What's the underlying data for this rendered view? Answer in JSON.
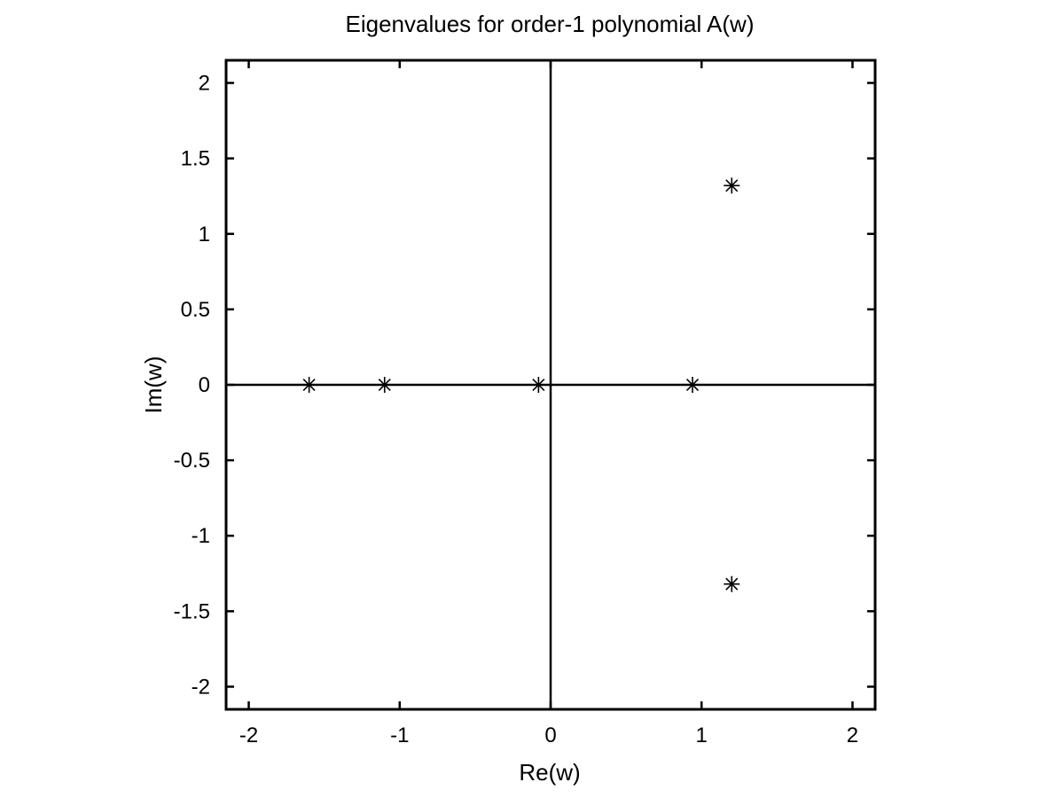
{
  "chart_data": {
    "type": "scatter",
    "title": "Eigenvalues for order-1 polynomial A(w)",
    "xlabel": "Re(w)",
    "ylabel": "Im(w)",
    "xlim": [
      -2.15,
      2.15
    ],
    "ylim": [
      -2.15,
      2.15
    ],
    "xticks": [
      -2,
      -1,
      0,
      1,
      2
    ],
    "xtick_labels": [
      "-2",
      "-1",
      "0",
      "1",
      "2"
    ],
    "yticks": [
      2,
      1.5,
      1,
      0.5,
      0,
      -0.5,
      -1,
      -1.5,
      -2
    ],
    "ytick_labels": [
      "2",
      "1.5",
      "1",
      "0.5",
      "0",
      "-0.5",
      "-1",
      "-1.5",
      "-2"
    ],
    "grid": false,
    "axes_lines_at_zero": true,
    "marker": "asterisk",
    "marker_color": "#000000",
    "series": [
      {
        "points": [
          {
            "x": -1.6,
            "y": 0
          },
          {
            "x": -1.1,
            "y": 0
          },
          {
            "x": -0.08,
            "y": 0
          },
          {
            "x": 0.94,
            "y": 0
          },
          {
            "x": 1.2,
            "y": 1.32
          },
          {
            "x": 1.2,
            "y": -1.32
          }
        ]
      }
    ]
  }
}
